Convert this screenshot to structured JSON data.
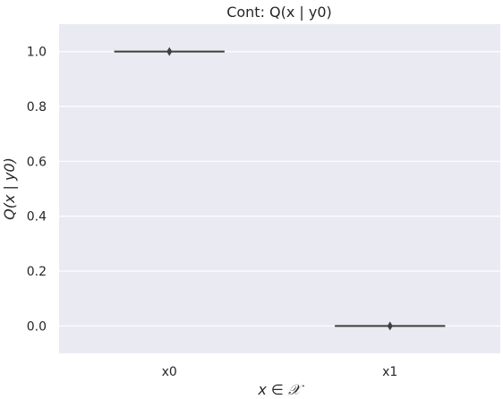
{
  "chart_data": {
    "type": "box",
    "title": "Cont: Q(x | y0)",
    "xlabel": "x ∈ 𝒳",
    "ylabel": "Q(x | y0)",
    "categories": [
      "x0",
      "x1"
    ],
    "values": [
      1.0,
      0.0
    ],
    "ylim": [
      -0.1,
      1.1
    ],
    "yticks": [
      "0.0",
      "0.2",
      "0.4",
      "0.6",
      "0.8",
      "1.0"
    ],
    "grid": true,
    "colors": {
      "background": "#EAEAF2",
      "grid": "#FFFFFF",
      "line": "#3F3F3F"
    }
  }
}
